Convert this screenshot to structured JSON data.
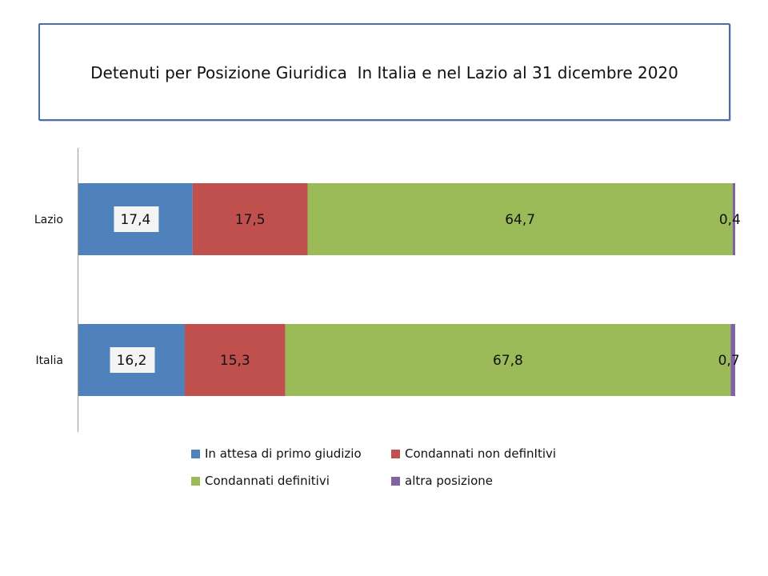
{
  "title": "Detenuti per Posizione Giuridica  In Italia e nel Lazio al 31 dicembre 2020",
  "colors": {
    "In attesa di primo giudizio": "#4f81bd",
    "Condannati non definItivi": "#c0504d",
    "Condannati definitivi": "#9bbb59",
    "altra posizione": "#8064a2"
  },
  "chart_data": {
    "type": "bar",
    "orientation": "horizontal",
    "stacked": "percent",
    "categories": [
      "Lazio",
      "Italia"
    ],
    "series": [
      {
        "name": "In attesa di primo giudizio",
        "values": [
          17.4,
          16.2
        ],
        "labels": [
          "17,4",
          "16,2"
        ]
      },
      {
        "name": "Condannati non definItivi",
        "values": [
          17.5,
          15.3
        ],
        "labels": [
          "17,5",
          "15,3"
        ]
      },
      {
        "name": "Condannati definitivi",
        "values": [
          64.7,
          67.8
        ],
        "labels": [
          "64,7",
          "67,8"
        ]
      },
      {
        "name": "altra posizione",
        "values": [
          0.4,
          0.7
        ],
        "labels": [
          "0,4",
          "0,7"
        ]
      }
    ],
    "grid": false,
    "legend": "bottom"
  }
}
